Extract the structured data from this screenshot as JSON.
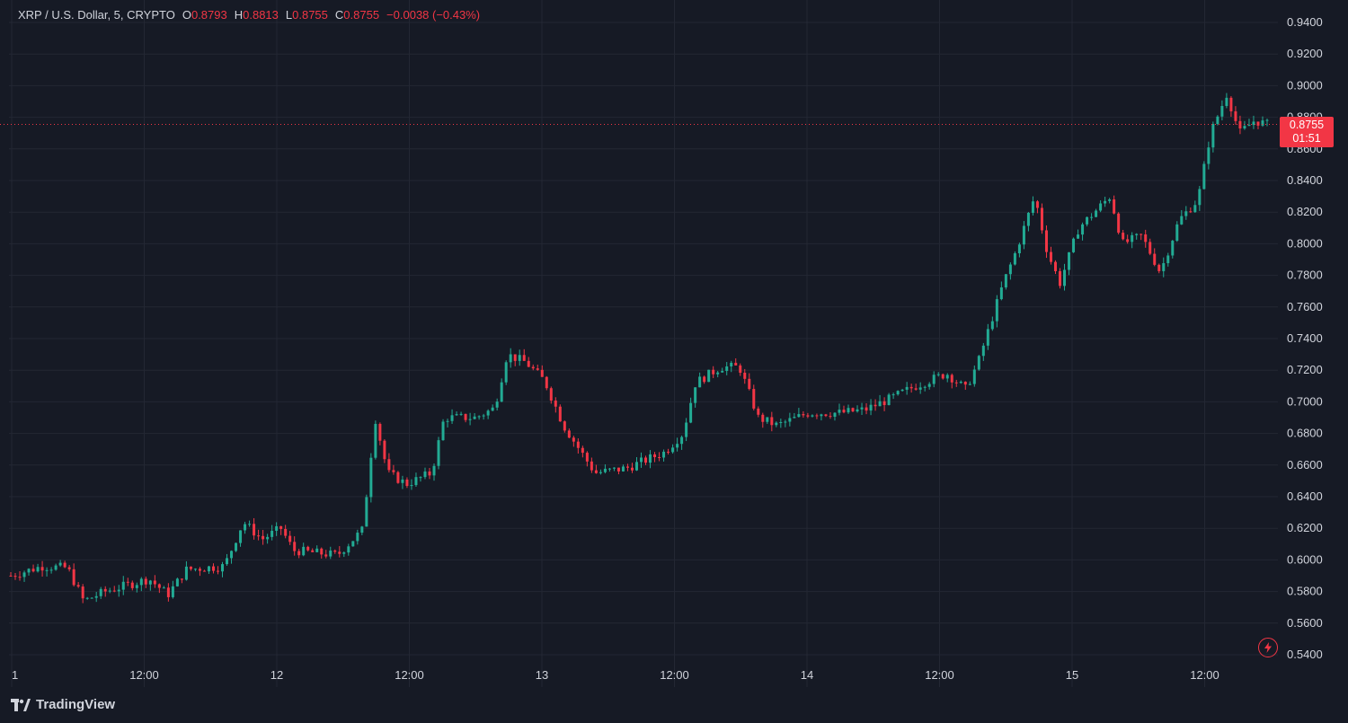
{
  "legend": {
    "symbol": "XRP / U.S. Dollar, 5, CRYPTO",
    "open_label": "O",
    "open": "0.8793",
    "high_label": "H",
    "high": "0.8813",
    "low_label": "L",
    "low": "0.8755",
    "close_label": "C",
    "close": "0.8755",
    "change": "−0.0038 (−0.43%)"
  },
  "last_price": {
    "price": "0.8755",
    "countdown": "01:51"
  },
  "branding": {
    "name": "TradingView"
  },
  "icons": {
    "logo": "tradingview-logo-icon",
    "flash": "lightning-icon"
  },
  "colors": {
    "up": "#22ab94",
    "down": "#f23645",
    "background": "#161a25",
    "grid": "#232733",
    "text": "#d1d4dc"
  },
  "chart_data": {
    "type": "candlestick",
    "ylim": [
      0.54,
      0.94
    ],
    "y_ticks": [
      "0.5400",
      "0.5600",
      "0.5800",
      "0.6000",
      "0.6200",
      "0.6400",
      "0.6600",
      "0.6800",
      "0.7000",
      "0.7200",
      "0.7400",
      "0.7600",
      "0.7800",
      "0.8000",
      "0.8200",
      "0.8400",
      "0.8600",
      "0.8800",
      "0.9000",
      "0.9200",
      "0.9400"
    ],
    "x_ticks": [
      "1",
      "12:00",
      "12",
      "12:00",
      "13",
      "12:00",
      "14",
      "12:00",
      "15",
      "12:00"
    ],
    "last_price": 0.8755,
    "price_path": [
      [
        0,
        0.59
      ],
      [
        0.025,
        0.596
      ],
      [
        0.045,
        0.595
      ],
      [
        0.058,
        0.574
      ],
      [
        0.075,
        0.58
      ],
      [
        0.11,
        0.588
      ],
      [
        0.125,
        0.578
      ],
      [
        0.14,
        0.594
      ],
      [
        0.17,
        0.596
      ],
      [
        0.185,
        0.624
      ],
      [
        0.2,
        0.613
      ],
      [
        0.215,
        0.62
      ],
      [
        0.225,
        0.606
      ],
      [
        0.26,
        0.603
      ],
      [
        0.28,
        0.619
      ],
      [
        0.29,
        0.69
      ],
      [
        0.3,
        0.655
      ],
      [
        0.315,
        0.648
      ],
      [
        0.335,
        0.655
      ],
      [
        0.345,
        0.69
      ],
      [
        0.37,
        0.69
      ],
      [
        0.385,
        0.696
      ],
      [
        0.395,
        0.73
      ],
      [
        0.41,
        0.725
      ],
      [
        0.425,
        0.713
      ],
      [
        0.44,
        0.685
      ],
      [
        0.465,
        0.655
      ],
      [
        0.49,
        0.658
      ],
      [
        0.52,
        0.668
      ],
      [
        0.535,
        0.68
      ],
      [
        0.545,
        0.712
      ],
      [
        0.565,
        0.722
      ],
      [
        0.58,
        0.722
      ],
      [
        0.595,
        0.69
      ],
      [
        0.61,
        0.685
      ],
      [
        0.635,
        0.693
      ],
      [
        0.66,
        0.693
      ],
      [
        0.68,
        0.695
      ],
      [
        0.7,
        0.702
      ],
      [
        0.72,
        0.71
      ],
      [
        0.745,
        0.718
      ],
      [
        0.76,
        0.708
      ],
      [
        0.77,
        0.725
      ],
      [
        0.79,
        0.775
      ],
      [
        0.8,
        0.795
      ],
      [
        0.815,
        0.83
      ],
      [
        0.825,
        0.795
      ],
      [
        0.835,
        0.775
      ],
      [
        0.85,
        0.81
      ],
      [
        0.865,
        0.822
      ],
      [
        0.875,
        0.83
      ],
      [
        0.885,
        0.8
      ],
      [
        0.9,
        0.805
      ],
      [
        0.915,
        0.782
      ],
      [
        0.93,
        0.815
      ],
      [
        0.945,
        0.828
      ],
      [
        0.955,
        0.87
      ],
      [
        0.968,
        0.895
      ],
      [
        0.978,
        0.87
      ],
      [
        0.99,
        0.878
      ],
      [
        1.0,
        0.8755
      ]
    ],
    "candle_count": 280
  }
}
